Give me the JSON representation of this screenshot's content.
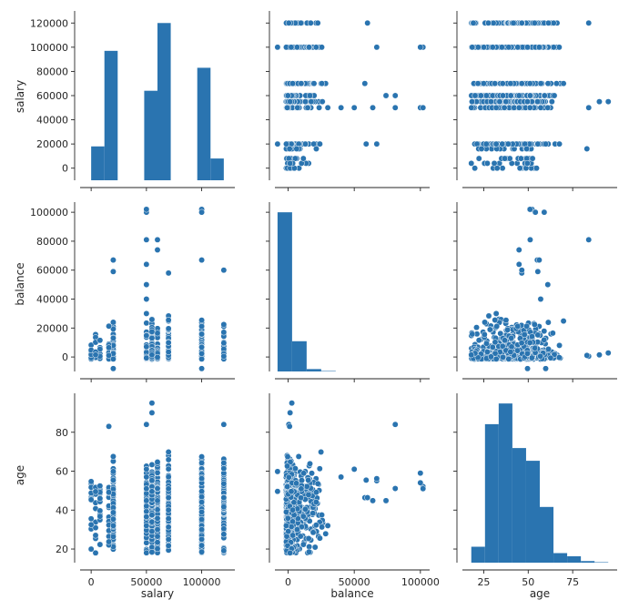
{
  "chart_data": {
    "type": "scatter",
    "kind": "pairplot",
    "variables": [
      "salary",
      "balance",
      "age"
    ],
    "color": "#2a74b0",
    "ranges": {
      "salary": [
        -10000,
        130000
      ],
      "balance": [
        -10000,
        107000
      ],
      "age": [
        13,
        100
      ]
    },
    "ticks": {
      "salary_y": [
        0,
        20000,
        40000,
        60000,
        80000,
        100000,
        120000
      ],
      "balance_y": [
        0,
        20000,
        40000,
        60000,
        80000,
        100000
      ],
      "age_y": [
        20,
        40,
        60,
        80
      ],
      "salary_x": [
        0,
        50000,
        100000
      ],
      "balance_x": [
        0,
        50000,
        100000
      ],
      "age_x": [
        25,
        50,
        75
      ]
    },
    "salary_levels": [
      0,
      4000,
      8000,
      16000,
      20000,
      50000,
      55000,
      60000,
      70000,
      100000,
      120000
    ],
    "diagonal": {
      "salary": {
        "bins": [
          [
            0,
            12000,
            18
          ],
          [
            12000,
            24000,
            97
          ],
          [
            48000,
            60000,
            64
          ],
          [
            60000,
            72000,
            120
          ],
          [
            96000,
            108000,
            83
          ],
          [
            108000,
            120000,
            8
          ]
        ],
        "y_scale": "shares salary y axis"
      },
      "balance": {
        "bins": [
          [
            -8000,
            3000,
            100
          ],
          [
            3000,
            14000,
            19
          ],
          [
            14000,
            25000,
            1.5
          ],
          [
            25000,
            36000,
            0.3
          ]
        ],
        "y_scale": "relative height on balance axis"
      },
      "age": {
        "bins": [
          [
            18,
            25.7,
            10
          ],
          [
            25.7,
            33.4,
            87
          ],
          [
            33.4,
            41.1,
            100
          ],
          [
            41.1,
            48.8,
            72
          ],
          [
            48.8,
            56.5,
            64
          ],
          [
            56.5,
            64.2,
            35
          ],
          [
            64.2,
            71.9,
            6
          ],
          [
            71.9,
            79.6,
            4
          ],
          [
            79.6,
            87.3,
            1
          ],
          [
            87.3,
            95,
            0.3
          ]
        ],
        "y_scale": "relative height on age axis"
      }
    },
    "scatter_samples": {
      "salary_balance_extremes": [
        [
          100000,
          102000
        ],
        [
          100000,
          100000
        ],
        [
          60000,
          81000
        ],
        [
          60000,
          74000
        ],
        [
          20000,
          67000
        ],
        [
          20000,
          59000
        ],
        [
          100000,
          67000
        ],
        [
          50000,
          64000
        ],
        [
          70000,
          58000
        ],
        [
          120000,
          60000
        ],
        [
          20000,
          -8000
        ],
        [
          100000,
          -8000
        ]
      ],
      "balance_age_extremes": [
        [
          81000,
          84
        ],
        [
          100000,
          59
        ],
        [
          102000,
          51
        ],
        [
          50000,
          61
        ],
        [
          40000,
          57
        ],
        [
          30000,
          32
        ]
      ],
      "age_salary_extremes": [
        [
          84,
          120000
        ],
        [
          83,
          16000
        ],
        [
          95,
          55000
        ],
        [
          90,
          55000
        ],
        [
          18,
          4000
        ]
      ]
    },
    "axis_labels": {
      "salary": "salary",
      "balance": "balance",
      "age": "age"
    },
    "grid": false,
    "legend": "none"
  }
}
